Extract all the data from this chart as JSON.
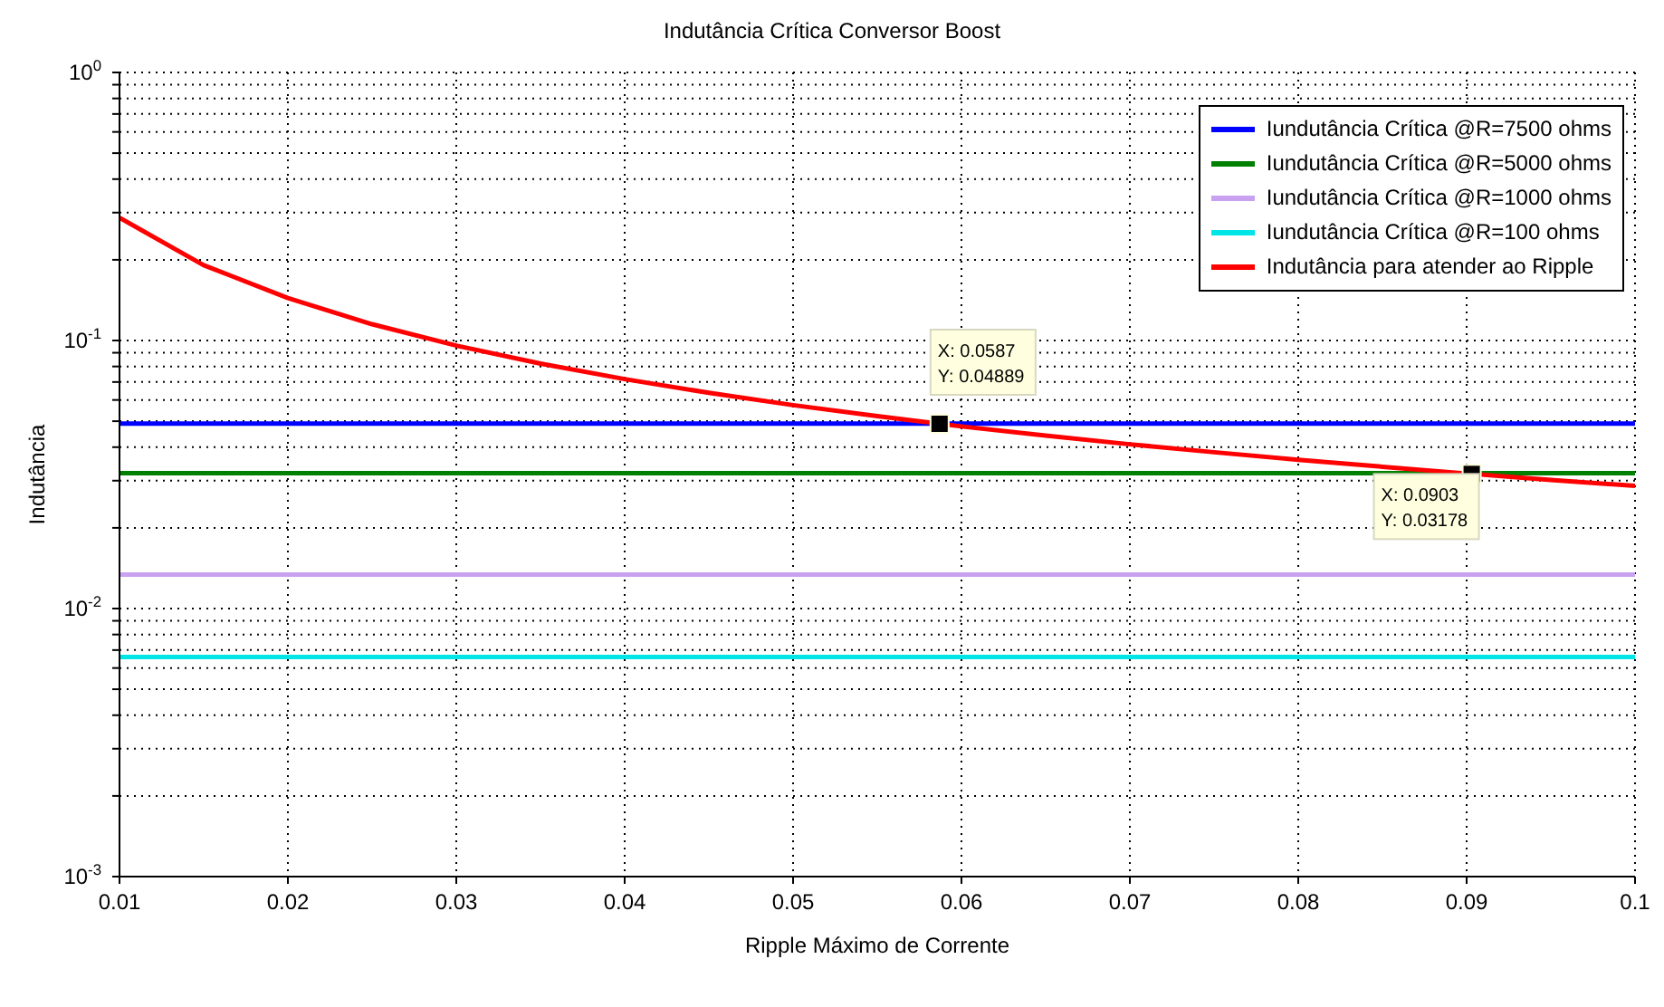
{
  "chart_data": {
    "type": "line",
    "title": "Indutância Crítica Conversor Boost",
    "xlabel": "Ripple Máximo de Corrente",
    "ylabel": "Indutância",
    "log": "y",
    "grid": true,
    "legend": "top right",
    "line_style": "solid",
    "marker": "none",
    "xlim": [
      0.01,
      0.1
    ],
    "xticks": [
      0.01,
      0.02,
      0.03,
      0.04,
      0.05,
      0.06,
      0.07,
      0.08,
      0.09,
      {
        "value": 0.1,
        "label": "0.1"
      }
    ],
    "ylim": [
      0.001,
      1
    ],
    "yticks": [
      {
        "value": 0.001,
        "label": "10$^{-3}$"
      },
      {
        "value": 0.002,
        "label": null
      },
      {
        "value": 0.003,
        "label": null
      },
      {
        "value": 0.004,
        "label": null
      },
      {
        "value": 0.005,
        "label": null
      },
      {
        "value": 0.006,
        "label": null
      },
      {
        "value": 0.007,
        "label": null
      },
      {
        "value": 0.008,
        "label": null
      },
      {
        "value": 0.009,
        "label": null
      },
      {
        "value": 0.01,
        "label": "10$^{-2}$"
      },
      {
        "value": 0.02,
        "label": null
      },
      {
        "value": 0.03,
        "label": null
      },
      {
        "value": 0.04,
        "label": null
      },
      {
        "value": 0.05,
        "label": null
      },
      {
        "value": 0.06,
        "label": null
      },
      {
        "value": 0.07,
        "label": null
      },
      {
        "value": 0.08,
        "label": null
      },
      {
        "value": 0.09,
        "label": null
      },
      {
        "value": 0.1,
        "label": "10$^{-1}$"
      },
      {
        "value": 0.2,
        "label": null
      },
      {
        "value": 0.3,
        "label": null
      },
      {
        "value": 0.4,
        "label": null
      },
      {
        "value": 0.5,
        "label": null
      },
      {
        "value": 0.6,
        "label": null
      },
      {
        "value": 0.7,
        "label": null
      },
      {
        "value": 0.8,
        "label": null
      },
      {
        "value": 0.9,
        "label": null
      },
      {
        "value": 1,
        "label": "10$^{0}$"
      }
    ],
    "series": [
      {
        "name": "Iundutância Crítica @R=7500 ohms",
        "color": "#0000ff",
        "x": [
          0.01,
          0.1
        ],
        "values": [
          0.049,
          0.049
        ]
      },
      {
        "name": "Iundutância Crítica @R=5000 ohms",
        "color": "#008000",
        "x": [
          0.01,
          0.1
        ],
        "values": [
          0.032,
          0.032
        ]
      },
      {
        "name": "Iundutância Crítica @R=1000 ohms",
        "color": "#c8a2f0",
        "x": [
          0.01,
          0.1
        ],
        "values": [
          0.0134,
          0.0134
        ]
      },
      {
        "name": "Iundutância Crítica @R=100 ohms",
        "color": "#00e5e5",
        "x": [
          0.01,
          0.1
        ],
        "values": [
          0.0066,
          0.0066
        ]
      },
      {
        "name": "Indutância para atender ao Ripple",
        "color": "#ff0000",
        "x": [
          0.01,
          0.015,
          0.02,
          0.025,
          0.03,
          0.035,
          0.04,
          0.045,
          0.05,
          0.055,
          0.06,
          0.065,
          0.07,
          0.075,
          0.08,
          0.085,
          0.09,
          0.095,
          0.1
        ],
        "values": [
          0.287,
          0.191,
          0.144,
          0.115,
          0.0957,
          0.082,
          0.0718,
          0.0638,
          0.0574,
          0.0522,
          0.0478,
          0.0442,
          0.041,
          0.0383,
          0.0359,
          0.0338,
          0.0319,
          0.0302,
          0.0287
        ]
      }
    ],
    "annotations": [
      {
        "text": "X: 0.0587\nY: 0.04889",
        "x": 0.0587,
        "y": 0.04889
      },
      {
        "text": "X: 0.0903\nY: 0.03178",
        "x": 0.0903,
        "y": 0.03178
      }
    ]
  }
}
